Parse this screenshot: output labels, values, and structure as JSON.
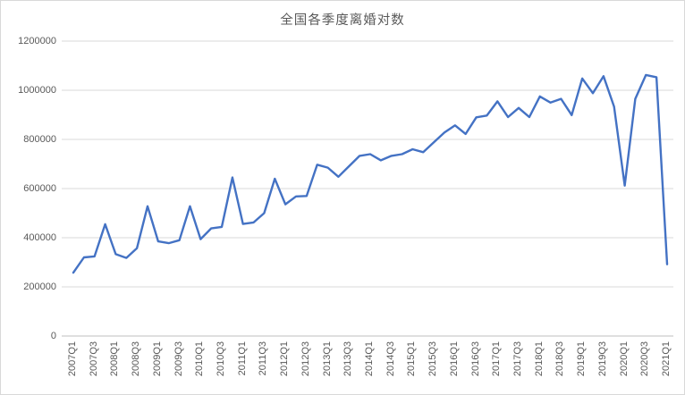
{
  "chart_data": {
    "type": "line",
    "title": "全国各季度离婚对数",
    "xlabel": "",
    "ylabel": "",
    "ylim": [
      0,
      1200000
    ],
    "grid": true,
    "legend": "none",
    "x": [
      "2007Q1",
      "2007Q2",
      "2007Q3",
      "2007Q4",
      "2008Q1",
      "2008Q2",
      "2008Q3",
      "2008Q4",
      "2009Q1",
      "2009Q2",
      "2009Q3",
      "2009Q4",
      "2010Q1",
      "2010Q2",
      "2010Q3",
      "2010Q4",
      "2011Q1",
      "2011Q2",
      "2011Q3",
      "2011Q4",
      "2012Q1",
      "2012Q2",
      "2012Q3",
      "2012Q4",
      "2013Q1",
      "2013Q2",
      "2013Q3",
      "2013Q4",
      "2014Q1",
      "2014Q2",
      "2014Q3",
      "2014Q4",
      "2015Q1",
      "2015Q2",
      "2015Q3",
      "2015Q4",
      "2016Q1",
      "2016Q2",
      "2016Q3",
      "2016Q4",
      "2017Q1",
      "2017Q2",
      "2017Q3",
      "2017Q4",
      "2018Q1",
      "2018Q2",
      "2018Q3",
      "2018Q4",
      "2019Q1",
      "2019Q2",
      "2019Q3",
      "2019Q4",
      "2020Q1",
      "2020Q2",
      "2020Q3",
      "2020Q4",
      "2021Q1"
    ],
    "values": [
      258000,
      320000,
      324000,
      455000,
      333000,
      318000,
      357000,
      528000,
      385000,
      378000,
      390000,
      528000,
      394000,
      438000,
      444000,
      645000,
      456000,
      462000,
      500000,
      640000,
      536000,
      568000,
      570000,
      697000,
      685000,
      648000,
      691000,
      733000,
      740000,
      715000,
      733000,
      740000,
      760000,
      748000,
      788000,
      828000,
      857000,
      822000,
      890000,
      897000,
      955000,
      891000,
      928000,
      891000,
      975000,
      950000,
      965000,
      899000,
      1048000,
      988000,
      1057000,
      933000,
      612000,
      965000,
      1062000,
      1053000,
      292000
    ],
    "x_tick_labels": [
      "2007Q1",
      "2007Q3",
      "2008Q1",
      "2008Q3",
      "2009Q1",
      "2009Q3",
      "2010Q1",
      "2010Q3",
      "2011Q1",
      "2011Q3",
      "2012Q1",
      "2012Q3",
      "2013Q1",
      "2013Q3",
      "2014Q1",
      "2014Q3",
      "2015Q1",
      "2015Q3",
      "2016Q1",
      "2016Q3",
      "2017Q1",
      "2017Q3",
      "2018Q1",
      "2018Q3",
      "2019Q1",
      "2019Q3",
      "2020Q1",
      "2020Q3",
      "2021Q1"
    ],
    "x_tick_every": 2,
    "y_ticks": [
      {
        "label": "0",
        "value": 0
      },
      {
        "label": "200000",
        "value": 200000
      },
      {
        "label": "400000",
        "value": 400000
      },
      {
        "label": "600000",
        "value": 600000
      },
      {
        "label": "800000",
        "value": 800000
      },
      {
        "label": "1000000",
        "value": 1000000
      },
      {
        "label": "1200000",
        "value": 1200000
      }
    ],
    "colors": {
      "line": "#4472C4",
      "grid": "#D9D9D9",
      "axis": "#BFBFBF",
      "text": "#595959",
      "title_text": "#595959",
      "background": "#FFFFFF",
      "border": "#D9D9D9"
    }
  }
}
